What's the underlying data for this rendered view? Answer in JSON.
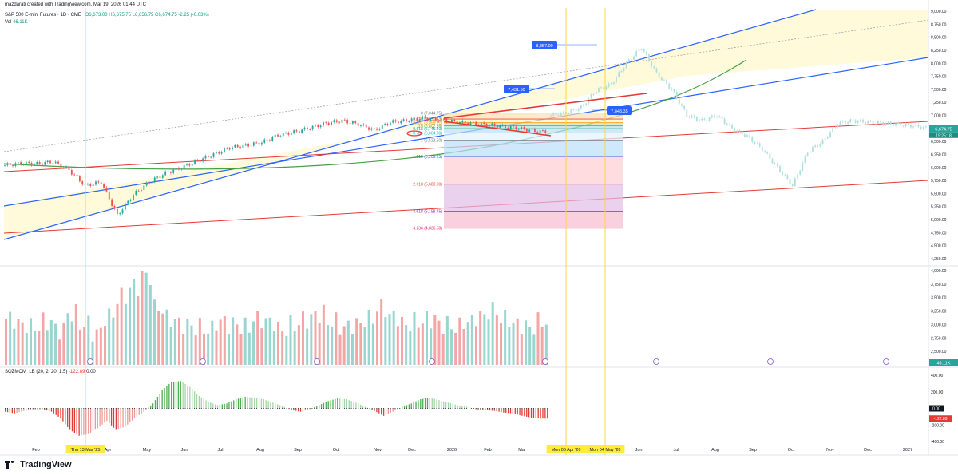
{
  "header": {
    "creator": "mazdarati created with TradingView.com, Mar 19, 2026 01:44 UTC",
    "symbol": "S&P 500 E-mini Futures · 1D · CME",
    "ohlc": {
      "o_label": "O",
      "o": "6,673.00",
      "h_label": "H",
      "h": "6,675.75",
      "l_label": "L",
      "l": "6,656.75",
      "c_label": "C",
      "c": "6,674.75",
      "change": "-2.25 (-0.03%)"
    },
    "vol_label": "Vol",
    "vol_value": "46.11K",
    "indicator_name": "SQZMOM_LB (20, 2, 20, 1.5)",
    "indicator_v1": "-122.89",
    "indicator_v2": "0.00"
  },
  "logo_text": "TradingView",
  "colors": {
    "up": "#26a69a",
    "down": "#ef5350",
    "vol_up": "#9ad5cf",
    "vol_down": "#f3a6a6",
    "channel_blue": "#2962ff",
    "red_line": "#e53935",
    "green_curve": "#43a047",
    "price_tag": "#26a69a",
    "event": "#7e57c2",
    "highlight": "#ffeb3b"
  },
  "chart_data": [
    {
      "type": "candlestick",
      "name": "price_pane",
      "title": "S&P 500 E-mini Futures · 1D · CME",
      "ylim": [
        4250,
        9000
      ],
      "y_ticks": [
        4250,
        4500,
        4750,
        5000,
        5250,
        5500,
        5750,
        6000,
        6250,
        6500,
        6750,
        7000,
        7250,
        7500,
        7750,
        8000,
        8250,
        8500,
        8750,
        9000
      ],
      "y_tick_labels": [
        "4,250.00",
        "4,500.00",
        "4,750.00",
        "5,000.00",
        "5,250.00",
        "5,500.00",
        "5,750.00",
        "6,000.00",
        "6,250.00",
        "6,500.00",
        "6,750.00",
        "7,000.00",
        "7,250.00",
        "7,500.00",
        "7,750.00",
        "8,000.00",
        "8,250.00",
        "8,500.00",
        "8,750.00",
        "9,000.00"
      ],
      "x_labels": [
        "Feb",
        "Thu 13 Mar '25",
        "Apr",
        "May",
        "Jun",
        "Jul",
        "Aug",
        "Sep",
        "Oct",
        "Nov",
        "Dec",
        "2026",
        "Feb",
        "Mar",
        "Mon 06 Apr '26",
        "Mon 04 May '26",
        "Jun",
        "Jul",
        "Aug",
        "Sep",
        "Oct",
        "Nov",
        "Dec",
        "2027"
      ],
      "x_label_index": [
        0,
        1,
        2,
        3,
        4,
        5,
        6,
        7,
        8,
        9,
        10,
        11,
        12,
        13,
        14,
        15,
        16,
        17,
        18,
        19,
        20,
        21,
        22,
        23
      ],
      "series": [
        {
          "name": "actual_close",
          "values": [
            6040,
            6080,
            6070,
            6110,
            5950,
            5650,
            5720,
            5080,
            5480,
            5720,
            5890,
            6000,
            6130,
            6250,
            6380,
            6420,
            6480,
            6620,
            6680,
            6760,
            6850,
            6900,
            6830,
            6720,
            6870,
            6900,
            6950,
            6910,
            6880,
            6850,
            6820,
            6790,
            6750,
            6700,
            6674.75
          ]
        },
        {
          "name": "projection",
          "values": [
            7000,
            7050,
            7150,
            7480,
            7600,
            8000,
            8300,
            7800,
            7500,
            7000,
            6900,
            7000,
            6750,
            6600,
            6350,
            6000,
            5650,
            6300,
            6500,
            6850,
            6900,
            6870,
            6850,
            6830,
            6800,
            6750
          ]
        }
      ],
      "price_labels": {
        "current": "6,674.75",
        "countdown": "19:25:18"
      },
      "annotations": [
        {
          "label": "8,357.00",
          "value": 8357
        },
        {
          "label": "7,431.50",
          "value": 7431.5
        },
        {
          "label": "7,048.35",
          "value": 7048.35
        }
      ],
      "fib_levels": [
        {
          "label": "0 (7,044.75)",
          "value": 7044.75
        },
        {
          "label": "0.236 (6,930.43)",
          "value": 6930.43
        },
        {
          "label": "0.382 (6,859.71)",
          "value": 6859.71
        },
        {
          "label": "0.5 (6,802.56)",
          "value": 6802.56
        },
        {
          "label": "0.618 (6,745.40)",
          "value": 6745.4
        },
        {
          "label": "0.786 (6,664.00)",
          "value": 6664.0
        },
        {
          "label": "1 (6,523.50)",
          "value": 6523.5
        },
        {
          "label": "1.618 (6,209.25)",
          "value": 6209.25
        },
        {
          "label": "2.618 (5,680.00)",
          "value": 5680
        },
        {
          "label": "3.618 (5,158.75)",
          "value": 5158.75
        },
        {
          "label": "4.236 (4,836.50)",
          "value": 4836.5
        }
      ]
    },
    {
      "type": "bar",
      "name": "volume_pane",
      "ylim": [
        2250,
        4000
      ],
      "y_ticks": [
        2500,
        2750,
        3000,
        3250,
        3500,
        3750,
        4000
      ],
      "y_tick_labels": [
        "2,500.00",
        "2,750.00",
        "3,000.00",
        "3,250.00",
        "3,500.00",
        "3,750.00",
        "4,000.00"
      ],
      "current_label": "46.11K",
      "values": [
        3100,
        3000,
        2950,
        3050,
        2900,
        3200,
        3000,
        2850,
        3150,
        3500,
        3700,
        3900,
        3300,
        3100,
        3000,
        2950,
        2900,
        3050,
        3000,
        2950,
        3100,
        3050,
        2900,
        3000,
        3100,
        3200,
        3050,
        2950,
        3000,
        3100,
        3300,
        3150,
        3000,
        3050,
        3100,
        3000,
        2950,
        3050,
        3150,
        3250,
        3100,
        3000,
        2950,
        3050
      ]
    },
    {
      "type": "bar",
      "name": "squeeze_momentum",
      "title": "SQZMOM_LB (20, 2, 20, 1.5)",
      "ylim": [
        -400,
        400
      ],
      "y_ticks": [
        -400,
        -200,
        0,
        200,
        400
      ],
      "y_tick_labels": [
        "-400.00",
        "-200.00",
        "0.00",
        "200.00",
        "400.00"
      ],
      "current_label": "-122.89",
      "values": [
        -40,
        -60,
        -30,
        -20,
        -10,
        -40,
        -120,
        -260,
        -330,
        -310,
        -240,
        -150,
        -260,
        -220,
        -120,
        -40,
        60,
        220,
        320,
        330,
        260,
        150,
        80,
        40,
        60,
        110,
        140,
        130,
        110,
        70,
        30,
        -20,
        -40,
        -10,
        40,
        90,
        120,
        110,
        70,
        20,
        -30,
        -90,
        -40,
        20,
        60,
        110,
        130,
        100,
        70,
        40,
        20,
        -10,
        -20,
        -30,
        -50,
        -60,
        -90,
        -110,
        -122.89
      ]
    }
  ]
}
